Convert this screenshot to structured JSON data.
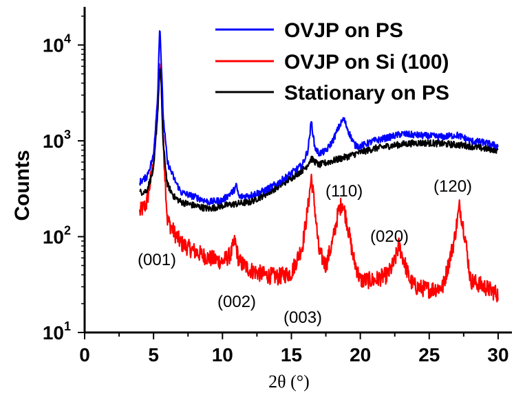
{
  "chart_data": {
    "type": "line",
    "xlabel": "2θ (°)",
    "ylabel": "Counts",
    "xlim": [
      0,
      31
    ],
    "ylim": [
      10,
      25000
    ],
    "y_scale": "log",
    "x_ticks": [
      "0",
      "5",
      "10",
      "15",
      "20",
      "25",
      "30"
    ],
    "y_ticks": [
      {
        "base": "10",
        "exp": "1"
      },
      {
        "base": "10",
        "exp": "2"
      },
      {
        "base": "10",
        "exp": "3"
      },
      {
        "base": "10",
        "exp": "4"
      }
    ],
    "legend_position": "top-right",
    "series": [
      {
        "name": "OVJP on PS",
        "color": "#0000ff",
        "x": [
          4,
          4.5,
          5,
          5.3,
          5.45,
          5.55,
          5.7,
          6,
          6.5,
          7,
          8,
          9,
          10,
          10.8,
          11,
          11.2,
          12,
          13,
          14,
          15,
          15.8,
          16.2,
          16.45,
          16.7,
          17,
          17.5,
          18,
          18.5,
          18.8,
          19.2,
          19.6,
          20,
          21,
          22,
          23,
          24,
          25,
          26,
          27,
          27.5,
          28,
          29,
          30
        ],
        "y": [
          370,
          420,
          700,
          3000,
          17000,
          7000,
          1800,
          600,
          400,
          290,
          260,
          230,
          240,
          300,
          340,
          260,
          270,
          300,
          360,
          460,
          560,
          800,
          1600,
          850,
          740,
          780,
          1000,
          1450,
          1700,
          1200,
          900,
          880,
          1000,
          1080,
          1180,
          1150,
          1120,
          1100,
          1150,
          1080,
          1000,
          960,
          880
        ]
      },
      {
        "name": "OVJP on Si (100)",
        "color": "#ff0000",
        "x": [
          4,
          4.5,
          5,
          5.3,
          5.45,
          5.55,
          5.7,
          6,
          6.5,
          7,
          8,
          9,
          10,
          10.6,
          10.9,
          11.2,
          12,
          13,
          14,
          15,
          15.8,
          16.2,
          16.45,
          16.7,
          17,
          17.5,
          18,
          18.4,
          18.7,
          19,
          19.5,
          20,
          21,
          22,
          22.5,
          22.8,
          23.1,
          23.6,
          24,
          25,
          26,
          26.8,
          27.2,
          27.6,
          28,
          29,
          30
        ],
        "y": [
          180,
          220,
          600,
          2500,
          6500,
          4500,
          1000,
          150,
          110,
          85,
          70,
          60,
          55,
          65,
          90,
          55,
          45,
          40,
          38,
          42,
          80,
          200,
          420,
          200,
          70,
          50,
          90,
          180,
          230,
          150,
          60,
          35,
          35,
          40,
          55,
          82,
          60,
          35,
          30,
          28,
          30,
          90,
          210,
          100,
          35,
          30,
          25
        ]
      },
      {
        "name": "Stationary on PS",
        "color": "#000000",
        "x": [
          4,
          4.5,
          5,
          5.3,
          5.45,
          5.55,
          5.7,
          6,
          6.5,
          7,
          8,
          9,
          10,
          11,
          12,
          13,
          14,
          15,
          16,
          16.45,
          17,
          18,
          19,
          20,
          21,
          22,
          23,
          24,
          25,
          26,
          27,
          28,
          29,
          30
        ],
        "y": [
          290,
          300,
          500,
          2000,
          6000,
          4000,
          900,
          350,
          260,
          230,
          210,
          195,
          210,
          220,
          230,
          270,
          330,
          410,
          520,
          650,
          560,
          620,
          680,
          760,
          830,
          880,
          920,
          950,
          950,
          930,
          910,
          880,
          830,
          800
        ]
      }
    ],
    "annotations": [
      "(001)",
      "(002)",
      "(003)",
      "(110)",
      "(020)",
      "(120)"
    ]
  }
}
